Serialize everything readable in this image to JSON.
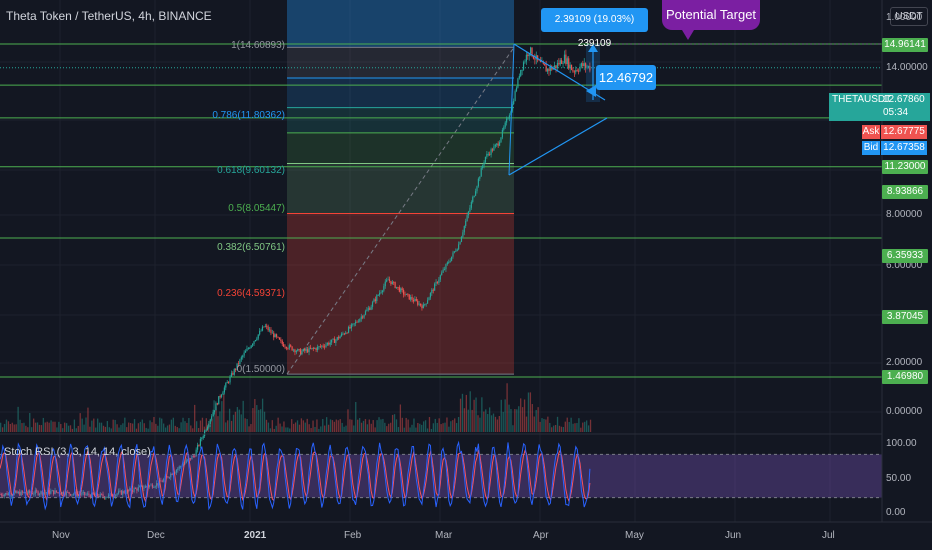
{
  "title": "Theta Token / TetherUS, 4h, BINANCE",
  "currency": "USDT",
  "annotations": {
    "target_label": "Potential Target",
    "measure_label": "2.39109 (19.03%) 239109",
    "callout_price": "12.46792"
  },
  "ticker": {
    "name": "THETAUSDT",
    "price": "12.67860",
    "countdown": "05:34"
  },
  "ask": {
    "label": "Ask",
    "value": "12.67775"
  },
  "bid": {
    "label": "Bid",
    "value": "12.67358"
  },
  "colors": {
    "background": "#131722",
    "green_line": "#4caf50",
    "fib_blue": "#2196f3",
    "fib_red": "#f44336",
    "rsi_blue": "#2962ff",
    "rsi_red": "#f7525f",
    "rsi_band": "#7e57c2",
    "candle_up": "#26a69a",
    "candle_down": "#ef5350"
  },
  "chart_data": {
    "type": "candlestick",
    "symbol": "THETAUSDT",
    "interval": "4h",
    "y_scale": "log",
    "price_axis": [
      "1.00000",
      "14.00000",
      "8.00000",
      "6.00000",
      "2.00000",
      "0.00000"
    ],
    "horizontal_levels": [
      "14.96141",
      "11.23000",
      "8.93866",
      "6.35933",
      "3.87045",
      "1.46980"
    ],
    "fib_levels": [
      {
        "ratio": "1",
        "price": "14.60893",
        "label": "1(14.60893)"
      },
      {
        "ratio": "0.786",
        "price": "11.80362",
        "label": "0.786(11.80362)"
      },
      {
        "ratio": "0.618",
        "price": "9.60132",
        "label": "0.618(9.60132)"
      },
      {
        "ratio": "0.5",
        "price": "8.05447",
        "label": "0.5(8.05447)"
      },
      {
        "ratio": "0.382",
        "price": "6.50761",
        "label": "0.382(6.50761)"
      },
      {
        "ratio": "0.236",
        "price": "4.59371",
        "label": "0.236(4.59371)"
      },
      {
        "ratio": "0",
        "price": "1.50000",
        "label": "0(1.50000)"
      }
    ],
    "x_axis": [
      "Nov",
      "Dec",
      "2021",
      "Feb",
      "Mar",
      "Apr",
      "May",
      "Jun",
      "Jul"
    ],
    "price_path": [
      {
        "t": 0.0,
        "p": 0.65
      },
      {
        "t": 0.06,
        "p": 0.66
      },
      {
        "t": 0.12,
        "p": 0.64
      },
      {
        "t": 0.18,
        "p": 0.7
      },
      {
        "t": 0.22,
        "p": 0.85
      },
      {
        "t": 0.25,
        "p": 1.3
      },
      {
        "t": 0.275,
        "p": 1.7
      },
      {
        "t": 0.3,
        "p": 2.1
      },
      {
        "t": 0.32,
        "p": 1.85
      },
      {
        "t": 0.34,
        "p": 1.75
      },
      {
        "t": 0.36,
        "p": 1.8
      },
      {
        "t": 0.38,
        "p": 1.9
      },
      {
        "t": 0.4,
        "p": 2.1
      },
      {
        "t": 0.42,
        "p": 2.4
      },
      {
        "t": 0.44,
        "p": 2.9
      },
      {
        "t": 0.46,
        "p": 2.6
      },
      {
        "t": 0.48,
        "p": 2.4
      },
      {
        "t": 0.5,
        "p": 3.0
      },
      {
        "t": 0.52,
        "p": 3.7
      },
      {
        "t": 0.535,
        "p": 5.0
      },
      {
        "t": 0.55,
        "p": 6.8
      },
      {
        "t": 0.565,
        "p": 7.5
      },
      {
        "t": 0.58,
        "p": 9.6
      },
      {
        "t": 0.59,
        "p": 12.5
      },
      {
        "t": 0.6,
        "p": 14.4
      },
      {
        "t": 0.61,
        "p": 13.2
      },
      {
        "t": 0.62,
        "p": 12.5
      },
      {
        "t": 0.63,
        "p": 12.8
      },
      {
        "t": 0.64,
        "p": 13.6
      },
      {
        "t": 0.65,
        "p": 12.4
      },
      {
        "t": 0.66,
        "p": 12.9
      },
      {
        "t": 0.67,
        "p": 12.68
      }
    ],
    "rsi": {
      "name": "Stoch RSI (3, 3, 14, 14, close)",
      "axis": [
        "100.00",
        "50.00",
        "0.00"
      ],
      "upper_band": 80,
      "lower_band": 20
    }
  }
}
